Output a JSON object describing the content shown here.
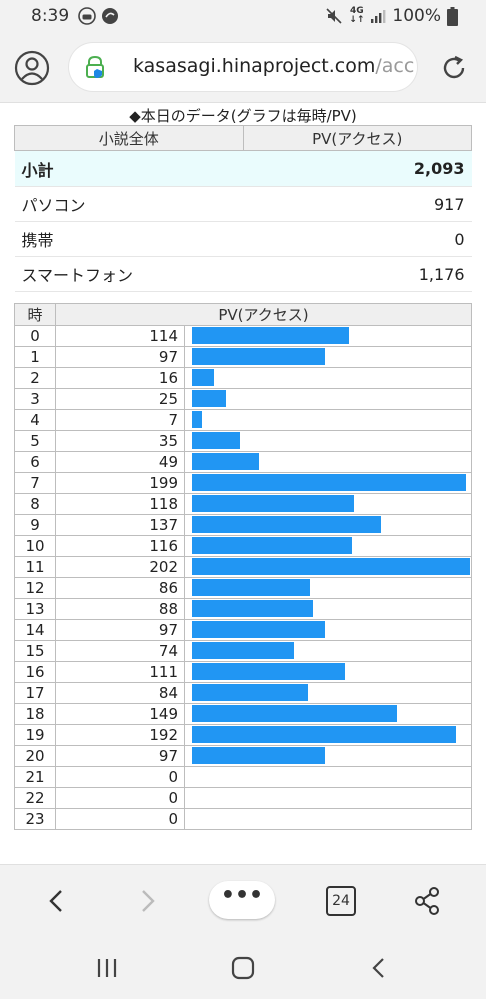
{
  "status_bar": {
    "time": "8:39",
    "network": "4G",
    "battery": "100%",
    "icons": [
      "car-mode-icon",
      "sync-icon",
      "mute-icon",
      "signal-icon",
      "battery-icon"
    ]
  },
  "browser": {
    "url_main": "kasasagi.hinaproject.com",
    "url_tail": "/acc",
    "tab_count": "24",
    "more_label": "•••"
  },
  "page": {
    "title": "◆本日のデータ(グラフは毎時/PV)",
    "summary": {
      "header_left": "小説全体",
      "header_right": "PV(アクセス)",
      "rows": [
        {
          "label": "小計",
          "value": "2,093"
        },
        {
          "label": "パソコン",
          "value": "917"
        },
        {
          "label": "携帯",
          "value": "0"
        },
        {
          "label": "スマートフォン",
          "value": "1,176"
        }
      ]
    },
    "hourly": {
      "header_hour": "時",
      "header_pv": "PV(アクセス)",
      "rows": [
        {
          "hour": "0",
          "pv": 114
        },
        {
          "hour": "1",
          "pv": 97
        },
        {
          "hour": "2",
          "pv": 16
        },
        {
          "hour": "3",
          "pv": 25
        },
        {
          "hour": "4",
          "pv": 7
        },
        {
          "hour": "5",
          "pv": 35
        },
        {
          "hour": "6",
          "pv": 49
        },
        {
          "hour": "7",
          "pv": 199
        },
        {
          "hour": "8",
          "pv": 118
        },
        {
          "hour": "9",
          "pv": 137
        },
        {
          "hour": "10",
          "pv": 116
        },
        {
          "hour": "11",
          "pv": 202
        },
        {
          "hour": "12",
          "pv": 86
        },
        {
          "hour": "13",
          "pv": 88
        },
        {
          "hour": "14",
          "pv": 97
        },
        {
          "hour": "15",
          "pv": 74
        },
        {
          "hour": "16",
          "pv": 111
        },
        {
          "hour": "17",
          "pv": 84
        },
        {
          "hour": "18",
          "pv": 149
        },
        {
          "hour": "19",
          "pv": 192
        },
        {
          "hour": "20",
          "pv": 97
        },
        {
          "hour": "21",
          "pv": 0
        },
        {
          "hour": "22",
          "pv": 0
        },
        {
          "hour": "23",
          "pv": 0
        }
      ],
      "bar_color": "#2196f3",
      "max_pv": 202
    }
  }
}
